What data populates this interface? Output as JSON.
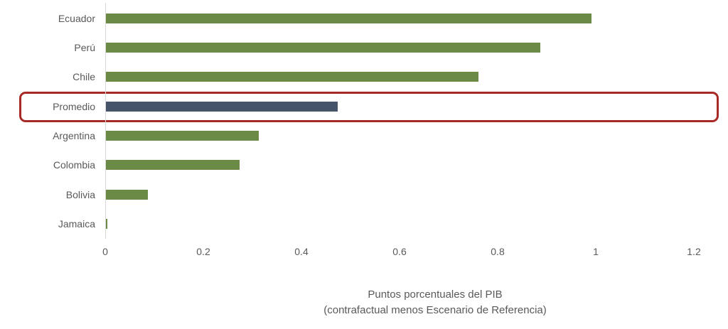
{
  "chart_data": {
    "type": "bar",
    "orientation": "horizontal",
    "title": "",
    "categories": [
      "Ecuador",
      "Perú",
      "Chile",
      "Promedio",
      "Argentina",
      "Colombia",
      "Bolivia",
      "Jamaica"
    ],
    "values": [
      0.99,
      0.885,
      0.76,
      0.472,
      0.312,
      0.272,
      0.085,
      0.003
    ],
    "xlabel": "Puntos porcentuales del PIB (contrafactual menos Escenario de Referencia)",
    "ylabel": "",
    "xlim": [
      0,
      1.2
    ],
    "x_ticks": [
      "0",
      "0.2",
      "0.4",
      "0.6",
      "0.8",
      "1",
      "1.2"
    ],
    "grid": false,
    "legend": null,
    "highlighted_category": "Promedio",
    "annotations": [
      "Red rounded rectangle highlighting the Promedio row"
    ]
  },
  "colors": {
    "country_bar": "#6a8a45",
    "average_bar": "#46546a",
    "highlight_border": "#a82a26",
    "text": "#595959",
    "axis": "#d9d9d9"
  },
  "axis": {
    "title_line1": "Puntos porcentuales del PIB",
    "title_line2": "(contrafactual menos Escenario de Referencia)",
    "ticks": [
      "0",
      "0.2",
      "0.4",
      "0.6",
      "0.8",
      "1",
      "1.2"
    ]
  },
  "rows": [
    {
      "label": "Ecuador",
      "value": 0.99
    },
    {
      "label": "Perú",
      "value": 0.885
    },
    {
      "label": "Chile",
      "value": 0.76
    },
    {
      "label": "Promedio",
      "value": 0.472
    },
    {
      "label": "Argentina",
      "value": 0.312
    },
    {
      "label": "Colombia",
      "value": 0.272
    },
    {
      "label": "Bolivia",
      "value": 0.085
    },
    {
      "label": "Jamaica",
      "value": 0.003
    }
  ]
}
